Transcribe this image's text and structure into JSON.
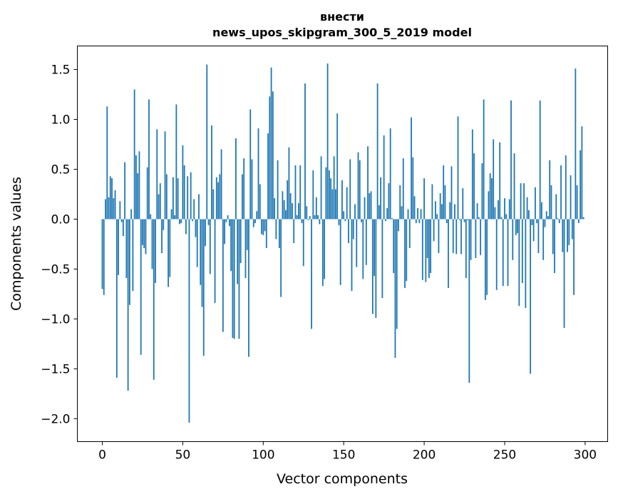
{
  "chart_data": {
    "type": "bar",
    "title": "внести",
    "subtitle": "news_upos_skipgram_300_5_2019 model",
    "xlabel": "Vector components",
    "ylabel": "Components values",
    "xlim": [
      -15.5,
      314
    ],
    "ylim": [
      -2.23,
      1.736
    ],
    "xticks": [
      0,
      50,
      100,
      150,
      200,
      250,
      300
    ],
    "xtick_labels": [
      "0",
      "50",
      "100",
      "150",
      "200",
      "250",
      "300"
    ],
    "yticks": [
      -2.0,
      -1.5,
      -1.0,
      -0.5,
      0.0,
      0.5,
      1.0,
      1.5
    ],
    "ytick_labels": [
      "−2.0",
      "−1.5",
      "−1.0",
      "−0.5",
      "0.0",
      "0.5",
      "1.0",
      "1.5"
    ],
    "grid": false,
    "bar_color": "#1f77b4",
    "values": [
      -0.7,
      -0.76,
      0.2,
      1.13,
      0.22,
      0.43,
      0.41,
      0.21,
      0.29,
      -1.59,
      -0.56,
      0.18,
      -0.03,
      -0.17,
      0.57,
      -0.59,
      -1.72,
      -0.86,
      0.1,
      -0.72,
      1.3,
      0.64,
      0.46,
      0.68,
      -1.36,
      -0.26,
      -0.29,
      -0.35,
      0.52,
      1.2,
      0.05,
      -0.5,
      -1.61,
      -0.64,
      0.9,
      0.25,
      0.36,
      -0.34,
      -0.11,
      0.88,
      0.45,
      -0.68,
      -0.58,
      0.1,
      0.42,
      0.04,
      1.15,
      0.41,
      -0.05,
      -0.04,
      0.74,
      0.54,
      -0.15,
      0.43,
      -2.04,
      0.47,
      -0.02,
      0.2,
      -0.18,
      -0.48,
      0.25,
      -0.66,
      -0.88,
      -1.37,
      -0.27,
      1.55,
      -0.06,
      -0.55,
      0.94,
      0.3,
      -0.84,
      0.42,
      0.37,
      0.45,
      0.7,
      -1.13,
      -0.25,
      -0.03,
      0.04,
      -0.07,
      -0.52,
      -1.19,
      -1.2,
      0.81,
      -0.65,
      -1.2,
      -0.44,
      0.45,
      0.61,
      -0.59,
      -0.31,
      -1.38,
      1.1,
      0.6,
      -0.08,
      -0.04,
      0.08,
      0.91,
      0.35,
      -0.15,
      -0.16,
      -0.12,
      -0.29,
      0.86,
      1.23,
      1.52,
      1.28,
      0.21,
      -0.2,
      0.59,
      -0.29,
      -0.78,
      0.28,
      0.19,
      0.09,
      0.39,
      0.72,
      0.26,
      0.16,
      -0.24,
      0.54,
      0.04,
      0.16,
      0.54,
      -0.04,
      -0.47,
      1.36,
      0.13,
      -0.01,
      0.03,
      -1.1,
      0.49,
      0.04,
      0.22,
      0.04,
      -0.05,
      0.63,
      -0.67,
      -0.6,
      0.52,
      1.56,
      0.49,
      0.41,
      0.3,
      0.63,
      0.3,
      1.06,
      -0.06,
      -0.66,
      0.39,
      0.08,
      -0.02,
      0.32,
      -0.24,
      0.6,
      -0.72,
      -0.2,
      0.15,
      -0.48,
      0.67,
      0.59,
      -0.03,
      -0.6,
      0.22,
      -0.46,
      0.73,
      0.26,
      0.28,
      -0.95,
      -0.57,
      -0.99,
      1.36,
      0.14,
      0.42,
      -0.79,
      0.84,
      -0.02,
      0.11,
      0.36,
      0.91,
      0.01,
      -0.54,
      -1.39,
      -1.1,
      -0.12,
      0.34,
      0.13,
      0.61,
      -0.69,
      -0.62,
      0.1,
      -0.29,
      1.02,
      0.62,
      0.23,
      -0.04,
      0.11,
      -0.04,
      0.1,
      -0.61,
      0.41,
      -0.63,
      -0.39,
      -0.59,
      -0.54,
      0.35,
      -0.22,
      0.18,
      0.05,
      -0.34,
      0.26,
      0.15,
      0.54,
      0.34,
      -0.04,
      -0.69,
      0.17,
      0.53,
      -0.34,
      0.15,
      -0.35,
      1.03,
      -0.01,
      -0.35,
      0.31,
      -0.03,
      -0.59,
      -0.01,
      -1.64,
      -0.41,
      0.9,
      0.66,
      -0.39,
      0.16,
      0.02,
      -0.36,
      0.56,
      1.2,
      -0.81,
      -0.76,
      0.28,
      0.46,
      0.41,
      0.8,
      0.12,
      -0.71,
      0.19,
      0.77,
      0.02,
      -0.67,
      0.21,
      0.05,
      -0.67,
      0.2,
      1.19,
      -0.41,
      0.66,
      -0.16,
      -0.14,
      -0.87,
      0.36,
      -0.64,
      0.36,
      -0.89,
      0.22,
      0.09,
      -1.55,
      -0.06,
      -0.22,
      0.32,
      -0.04,
      -0.34,
      1.19,
      0.17,
      -0.41,
      -0.08,
      0.08,
      0.03,
      0.59,
      0.34,
      -0.35,
      -0.54,
      0.25,
      0.01,
      -0.04,
      0.54,
      -0.33,
      -1.09,
      0.64,
      -0.33,
      -0.26,
      0.44,
      -0.2,
      -0.76,
      1.51,
      0.34,
      -0.04,
      0.69,
      0.93,
      0.02
    ]
  }
}
